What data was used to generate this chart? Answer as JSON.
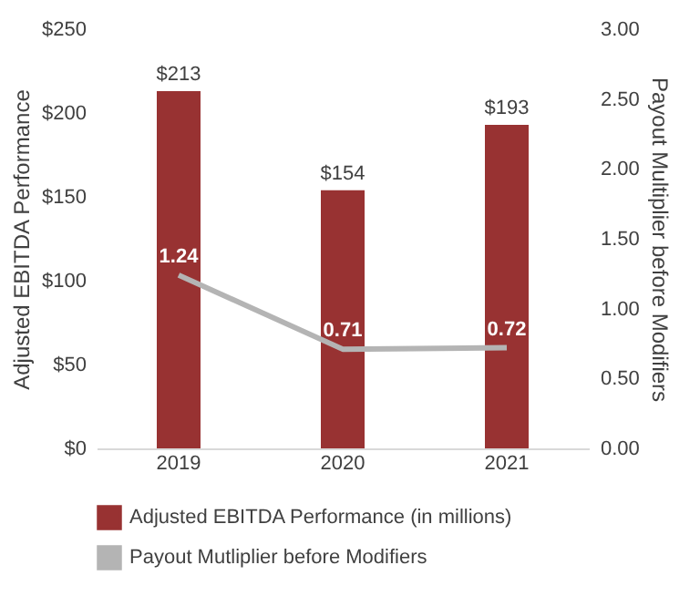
{
  "chart_data": {
    "type": "bar",
    "categories": [
      "2019",
      "2020",
      "2021"
    ],
    "ylabel": "Adjusted EBITDA Performance",
    "y2label": "Payout Multiplier before Modifiers",
    "ylim": [
      0,
      250
    ],
    "yticks": [
      {
        "value": 0,
        "label": "$0"
      },
      {
        "value": 50,
        "label": "$50"
      },
      {
        "value": 100,
        "label": "$100"
      },
      {
        "value": 150,
        "label": "$150"
      },
      {
        "value": 200,
        "label": "$200"
      },
      {
        "value": 250,
        "label": "$250"
      }
    ],
    "y2lim": [
      0,
      3
    ],
    "y2ticks": [
      {
        "value": 0,
        "label": "0.00"
      },
      {
        "value": 0.5,
        "label": "0.50"
      },
      {
        "value": 1,
        "label": "1.00"
      },
      {
        "value": 1.5,
        "label": "1.50"
      },
      {
        "value": 2,
        "label": "2.00"
      },
      {
        "value": 2.5,
        "label": "2.50"
      },
      {
        "value": 3,
        "label": "3.00"
      }
    ],
    "series": [
      {
        "name": "Adjusted EBITDA Performance (in millions)",
        "color": "#983232",
        "values": [
          213,
          154,
          193
        ],
        "value_labels": [
          "$213",
          "$154",
          "$193"
        ]
      },
      {
        "name": "Payout Mutliplier before Modifiers",
        "type": "line",
        "axis": "y2",
        "color": "#b4b4b4",
        "values": [
          1.24,
          0.71,
          0.72
        ],
        "value_labels": [
          "1.24",
          "0.71",
          "0.72"
        ]
      }
    ],
    "legend": "bottom",
    "grid": false
  }
}
